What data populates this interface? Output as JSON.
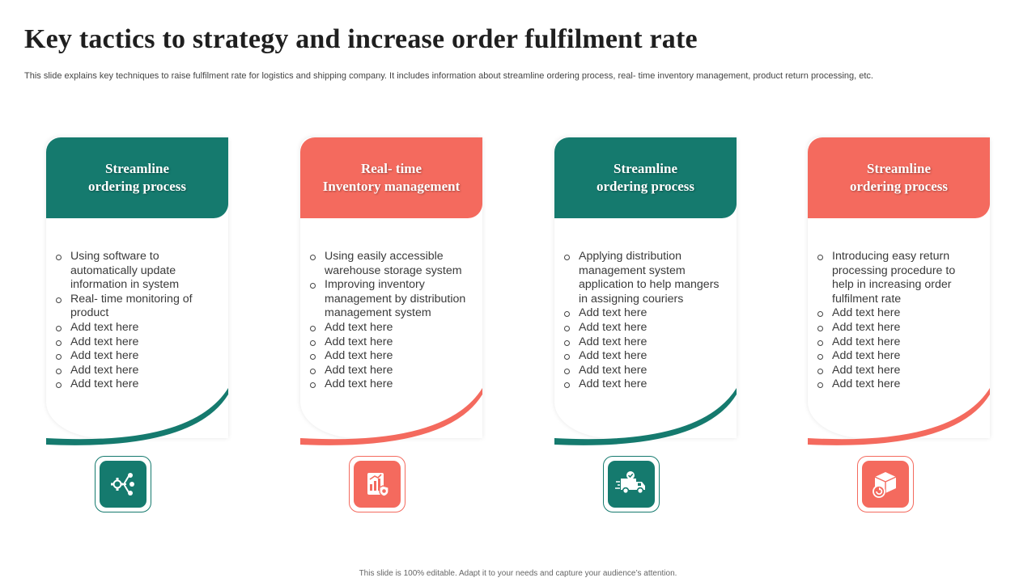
{
  "slide": {
    "title": "Key tactics to strategy and increase order fulfilment rate",
    "subtitle": "This slide explains key techniques to raise fulfilment rate for logistics and shipping company. It includes information about streamline ordering process, real- time inventory management, product return processing, etc.",
    "footer": "This slide is 100% editable. Adapt it to your needs and capture your audience’s attention."
  },
  "colors": {
    "teal": "#157a6e",
    "coral": "#f46a5e"
  },
  "cards": [
    {
      "heading": "Streamline\nordering process",
      "color": "teal",
      "icon": "gear-network-icon",
      "items": [
        "Using software to automatically update information in system",
        "Real- time monitoring of product",
        "Add text here",
        "Add text here",
        "Add text here",
        "Add text here",
        "Add text here"
      ]
    },
    {
      "heading": "Real- time\nInventory management",
      "color": "coral",
      "icon": "inventory-report-icon",
      "items": [
        "Using easily accessible warehouse storage system",
        "Improving inventory management by distribution management system",
        "Add text here",
        "Add text here",
        "Add text here",
        "Add text here",
        "Add text here"
      ]
    },
    {
      "heading": "Streamline\nordering process",
      "color": "teal",
      "icon": "delivery-truck-icon",
      "items": [
        "Applying distribution management system application to help mangers in assigning couriers",
        "Add text here",
        "Add text here",
        "Add text here",
        "Add text here",
        "Add text here",
        "Add text here"
      ]
    },
    {
      "heading": "Streamline\nordering process",
      "color": "coral",
      "icon": "package-return-icon",
      "items": [
        "Introducing easy return processing procedure to help in increasing order fulfilment rate",
        "Add text here",
        "Add text here",
        "Add text here",
        "Add text here",
        "Add text here",
        "Add text here"
      ]
    }
  ]
}
